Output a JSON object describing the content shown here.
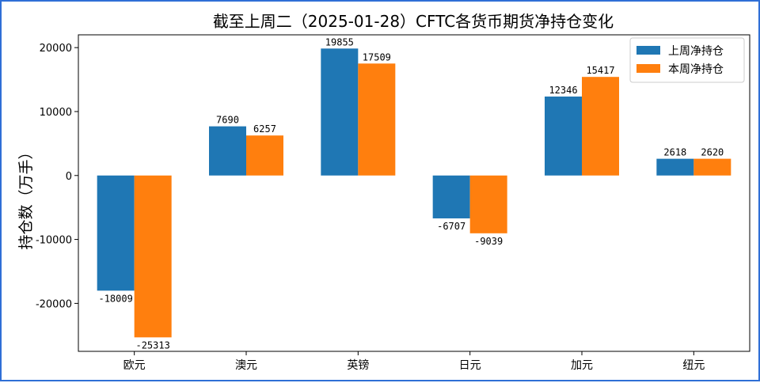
{
  "chart_data": {
    "type": "bar",
    "title": "截至上周二（2025-01-28）CFTC各货币期货净持仓变化",
    "ylabel": "持仓数（万手）",
    "xlabel": "",
    "categories": [
      "欧元",
      "澳元",
      "英镑",
      "日元",
      "加元",
      "纽元"
    ],
    "series": [
      {
        "name": "上周净持仓",
        "color": "#1f77b4",
        "values": [
          -18009,
          7690,
          19855,
          -6707,
          12346,
          2618
        ]
      },
      {
        "name": "本周净持仓",
        "color": "#ff7f0e",
        "values": [
          -25313,
          6257,
          17509,
          -9039,
          15417,
          2620
        ]
      }
    ],
    "ylim": [
      -27500,
      22000
    ],
    "yticks": [
      -20000,
      -10000,
      0,
      10000,
      20000
    ],
    "legend": "top-right",
    "grid": false
  }
}
